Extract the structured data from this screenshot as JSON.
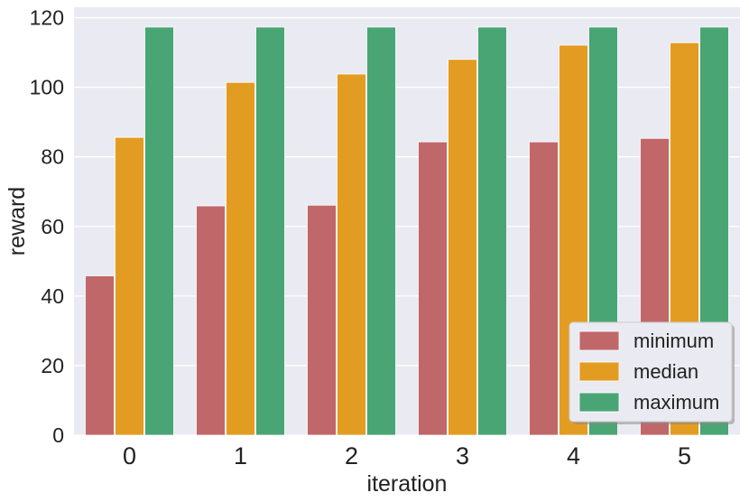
{
  "chart_data": {
    "type": "bar",
    "categories": [
      "0",
      "1",
      "2",
      "3",
      "4",
      "5"
    ],
    "series": [
      {
        "name": "minimum",
        "color": "#c0676a",
        "values": [
          45.8,
          65.9,
          66.1,
          84.3,
          84.3,
          85.3
        ]
      },
      {
        "name": "median",
        "color": "#e39c22",
        "values": [
          85.6,
          101.4,
          103.8,
          108.0,
          112.1,
          112.8
        ]
      },
      {
        "name": "maximum",
        "color": "#4aa574",
        "values": [
          117.3,
          117.3,
          117.3,
          117.3,
          117.3,
          117.3
        ]
      }
    ],
    "title": "",
    "xlabel": "iteration",
    "ylabel": "reward",
    "ylim": [
      0,
      123
    ],
    "yticks": [
      0,
      20,
      40,
      60,
      80,
      100,
      120
    ],
    "grid": true,
    "legend_position": "bottom-right",
    "background_color": "#eaeaf2"
  }
}
